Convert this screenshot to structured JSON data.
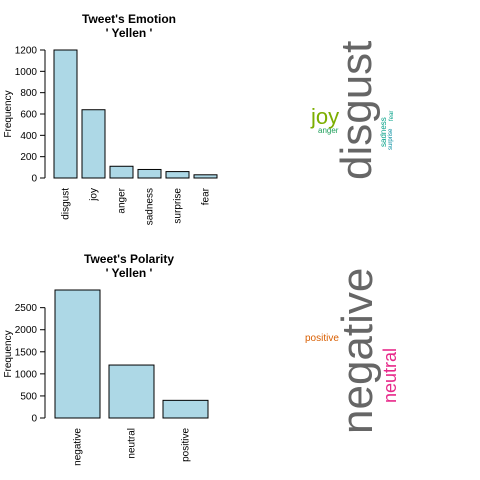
{
  "chart_data": [
    {
      "type": "bar",
      "title": "Tweet's Emotion",
      "subtitle": "' Yellen '",
      "xlabel": "",
      "ylabel": "Frequency",
      "categories": [
        "disgust",
        "joy",
        "anger",
        "sadness",
        "surprise",
        "fear"
      ],
      "values": [
        1200,
        640,
        110,
        80,
        60,
        30
      ],
      "ylim": [
        0,
        1200
      ],
      "yticks": [
        0,
        200,
        400,
        600,
        800,
        1000,
        1200
      ],
      "bar_color": "#ADD8E6",
      "grid": false
    },
    {
      "type": "bar",
      "title": "Tweet's Polarity",
      "subtitle": "' Yellen '",
      "xlabel": "",
      "ylabel": "Frequency",
      "categories": [
        "negative",
        "neutral",
        "positive"
      ],
      "values": [
        2900,
        1200,
        400
      ],
      "ylim": [
        0,
        2900
      ],
      "yticks": [
        0,
        500,
        1000,
        1500,
        2000,
        2500
      ],
      "bar_color": "#ADD8E6",
      "grid": false
    }
  ],
  "emotion_cloud": [
    {
      "word": "disgust",
      "color": "#666666",
      "orientation": "vertical"
    },
    {
      "word": "joy",
      "color": "#7CAE00",
      "orientation": "horizontal"
    },
    {
      "word": "anger",
      "color": "#1E9E5A",
      "orientation": "horizontal"
    },
    {
      "word": "sadness",
      "color": "#00A087",
      "orientation": "vertical"
    },
    {
      "word": "surprise",
      "color": "#008C9E",
      "orientation": "vertical"
    },
    {
      "word": "fear",
      "color": "#00A087",
      "orientation": "vertical"
    }
  ],
  "polarity_cloud": [
    {
      "word": "negative",
      "color": "#666666",
      "orientation": "vertical"
    },
    {
      "word": "neutral",
      "color": "#E7298A",
      "orientation": "vertical"
    },
    {
      "word": "positive",
      "color": "#D95F02",
      "orientation": "horizontal"
    }
  ]
}
